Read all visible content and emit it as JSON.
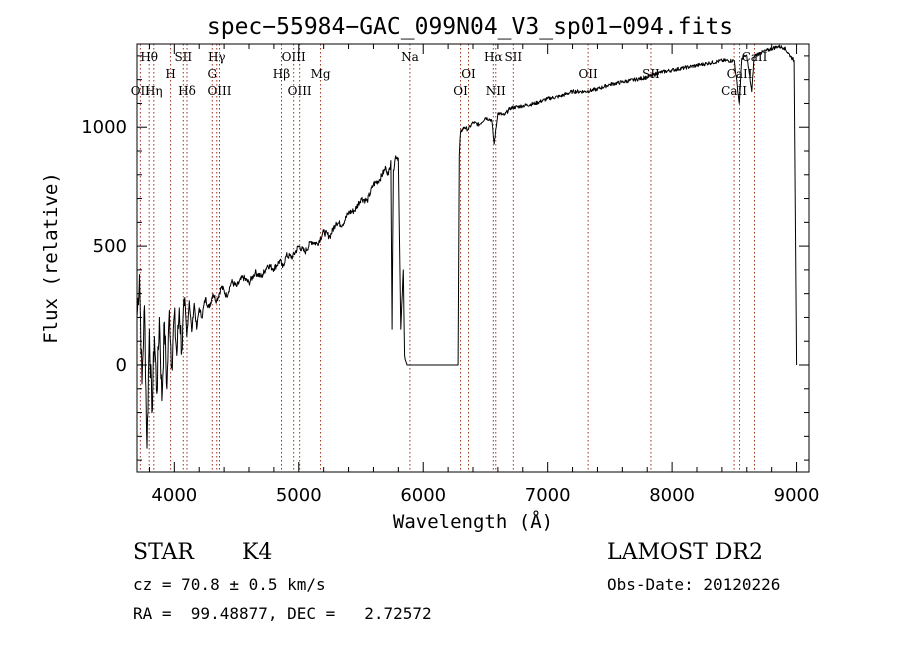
{
  "chart_data": {
    "type": "line",
    "title": "spec−55984−GAC_099N04_V3_sp01−094.fits",
    "xlabel": "Wavelength (Å)",
    "ylabel": "Flux (relative)",
    "xlim": [
      3700,
      9100
    ],
    "ylim": [
      -450,
      1350
    ],
    "xticks": [
      4000,
      5000,
      6000,
      7000,
      8000,
      9000
    ],
    "yticks": [
      0,
      500,
      1000
    ],
    "grid": false,
    "series": [
      {
        "color": "#000000",
        "points": [
          [
            3700,
            200
          ],
          [
            3720,
            380
          ],
          [
            3740,
            -80
          ],
          [
            3760,
            250
          ],
          [
            3780,
            -350
          ],
          [
            3800,
            150
          ],
          [
            3820,
            -200
          ],
          [
            3840,
            120
          ],
          [
            3860,
            -120
          ],
          [
            3880,
            200
          ],
          [
            3900,
            -150
          ],
          [
            3920,
            180
          ],
          [
            3940,
            -100
          ],
          [
            3960,
            230
          ],
          [
            3980,
            0
          ],
          [
            4000,
            210
          ],
          [
            4020,
            40
          ],
          [
            4040,
            240
          ],
          [
            4060,
            60
          ],
          [
            4080,
            250
          ],
          [
            4100,
            120
          ],
          [
            4120,
            270
          ],
          [
            4140,
            140
          ],
          [
            4160,
            260
          ],
          [
            4180,
            150
          ],
          [
            4200,
            240
          ],
          [
            4220,
            200
          ],
          [
            4250,
            280
          ],
          [
            4280,
            240
          ],
          [
            4310,
            300
          ],
          [
            4340,
            270
          ],
          [
            4380,
            330
          ],
          [
            4420,
            290
          ],
          [
            4460,
            350
          ],
          [
            4500,
            330
          ],
          [
            4550,
            370
          ],
          [
            4600,
            345
          ],
          [
            4650,
            390
          ],
          [
            4700,
            370
          ],
          [
            4750,
            420
          ],
          [
            4800,
            405
          ],
          [
            4850,
            440
          ],
          [
            4870,
            410
          ],
          [
            4900,
            460
          ],
          [
            4950,
            455
          ],
          [
            5000,
            500
          ],
          [
            5050,
            475
          ],
          [
            5100,
            520
          ],
          [
            5150,
            510
          ],
          [
            5200,
            560
          ],
          [
            5250,
            540
          ],
          [
            5300,
            600
          ],
          [
            5350,
            590
          ],
          [
            5400,
            640
          ],
          [
            5450,
            650
          ],
          [
            5500,
            700
          ],
          [
            5550,
            690
          ],
          [
            5600,
            760
          ],
          [
            5650,
            780
          ],
          [
            5700,
            830
          ],
          [
            5720,
            800
          ],
          [
            5740,
            860
          ],
          [
            5750,
            150
          ],
          [
            5760,
            820
          ],
          [
            5780,
            880
          ],
          [
            5800,
            870
          ],
          [
            5820,
            150
          ],
          [
            5840,
            400
          ],
          [
            5850,
            40
          ],
          [
            5870,
            0
          ],
          [
            6000,
            0
          ],
          [
            6100,
            0
          ],
          [
            6200,
            0
          ],
          [
            6280,
            0
          ],
          [
            6290,
            880
          ],
          [
            6300,
            980
          ],
          [
            6330,
            1000
          ],
          [
            6360,
            990
          ],
          [
            6400,
            1020
          ],
          [
            6450,
            1010
          ],
          [
            6500,
            1040
          ],
          [
            6550,
            1030
          ],
          [
            6570,
            930
          ],
          [
            6600,
            1060
          ],
          [
            6650,
            1050
          ],
          [
            6700,
            1080
          ],
          [
            6800,
            1090
          ],
          [
            6900,
            1100
          ],
          [
            7000,
            1120
          ],
          [
            7100,
            1130
          ],
          [
            7200,
            1150
          ],
          [
            7300,
            1150
          ],
          [
            7400,
            1160
          ],
          [
            7500,
            1180
          ],
          [
            7600,
            1190
          ],
          [
            7700,
            1200
          ],
          [
            7800,
            1210
          ],
          [
            7900,
            1230
          ],
          [
            8000,
            1240
          ],
          [
            8100,
            1250
          ],
          [
            8200,
            1260
          ],
          [
            8300,
            1270
          ],
          [
            8400,
            1280
          ],
          [
            8500,
            1280
          ],
          [
            8540,
            1100
          ],
          [
            8560,
            1290
          ],
          [
            8600,
            1300
          ],
          [
            8640,
            1150
          ],
          [
            8660,
            1300
          ],
          [
            8700,
            1310
          ],
          [
            8750,
            1320
          ],
          [
            8800,
            1330
          ],
          [
            8850,
            1340
          ],
          [
            8900,
            1335
          ],
          [
            8950,
            1300
          ],
          [
            8980,
            1280
          ],
          [
            9000,
            0
          ]
        ]
      }
    ],
    "annotations": [
      {
        "label": "Hθ",
        "x": 3798,
        "row": 0
      },
      {
        "label": "OII",
        "x": 3727,
        "row": 2
      },
      {
        "label": "Hη",
        "x": 3835,
        "row": 2
      },
      {
        "label": "H",
        "x": 3970,
        "row": 1
      },
      {
        "label": "SII",
        "x": 4072,
        "row": 0
      },
      {
        "label": "Hδ",
        "x": 4102,
        "row": 2
      },
      {
        "label": "Hγ",
        "x": 4341,
        "row": 0
      },
      {
        "label": "G",
        "x": 4305,
        "row": 1
      },
      {
        "label": "OIII",
        "x": 4363,
        "row": 2
      },
      {
        "label": "OIII",
        "x": 4959,
        "row": 0
      },
      {
        "label": "Hβ",
        "x": 4861,
        "row": 1
      },
      {
        "label": "OIII",
        "x": 5007,
        "row": 2
      },
      {
        "label": "Mg",
        "x": 5175,
        "row": 1
      },
      {
        "label": "Na",
        "x": 5893,
        "row": 0
      },
      {
        "label": "OI",
        "x": 6364,
        "row": 1
      },
      {
        "label": "OI",
        "x": 6300,
        "row": 2
      },
      {
        "label": "Hα",
        "x": 6563,
        "row": 0
      },
      {
        "label": "SII",
        "x": 6724,
        "row": 0
      },
      {
        "label": "NII",
        "x": 6583,
        "row": 2
      },
      {
        "label": "OII",
        "x": 7325,
        "row": 1
      },
      {
        "label": "SII",
        "x": 7830,
        "row": 1
      },
      {
        "label": "CaII",
        "x": 8542,
        "row": 1
      },
      {
        "label": "CaII",
        "x": 8498,
        "row": 2
      },
      {
        "label": "CaII",
        "x": 8662,
        "row": 0
      }
    ],
    "line_markers": [
      3727,
      3798,
      3835,
      3970,
      4072,
      4102,
      4305,
      4341,
      4363,
      4861,
      4959,
      5007,
      5175,
      5893,
      6300,
      6364,
      6563,
      6583,
      6724,
      7325,
      7830,
      8498,
      8542,
      8662
    ]
  },
  "info": {
    "object_class": "STAR",
    "subclass": "K4",
    "survey": "LAMOST DR2",
    "cz": "cz = 70.8 ± 0.5 km/s",
    "obs_date": "Obs-Date: 20120226",
    "coords": "RA =  99.48877, DEC =   2.72572"
  }
}
